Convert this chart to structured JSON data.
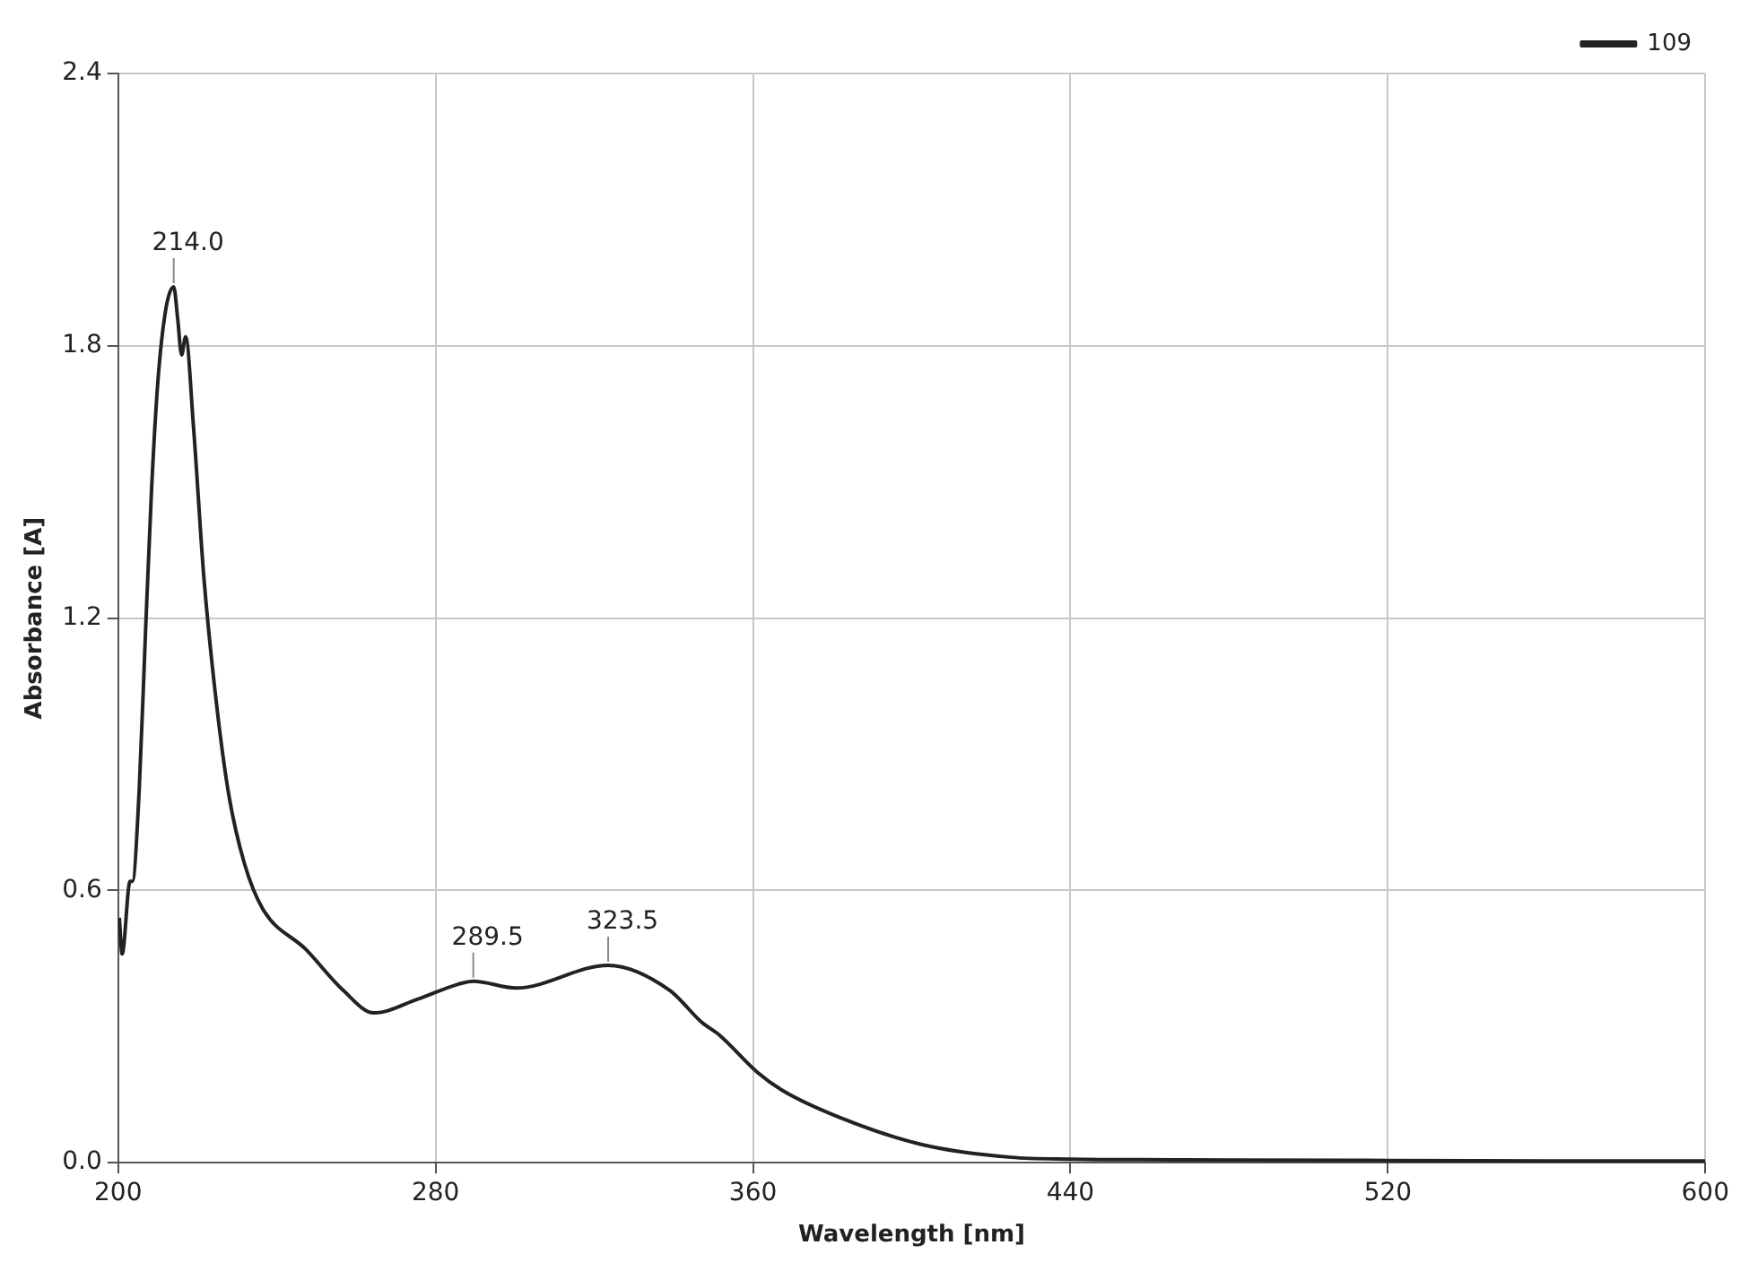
{
  "chart_data": {
    "type": "line",
    "xlabel": "Wavelength [nm]",
    "ylabel": "Absorbance [A]",
    "series": [
      {
        "name": "109",
        "color": "#222222",
        "x": [
          200.3,
          201,
          203,
          203.6,
          205.3,
          206.9,
          208.4,
          210,
          212,
          214,
          215,
          216,
          217,
          219,
          221.6,
          224.8,
          227.9,
          231.8,
          236.4,
          247.3,
          256.7,
          264.5,
          275.4,
          286.3,
          289.5,
          300.3,
          323.5,
          339,
          347,
          351.7,
          361,
          367.3,
          381.8,
          402.6,
          425,
          440,
          480,
          520,
          560,
          600
        ],
        "values": [
          0.54,
          0.46,
          0.62,
          0.62,
          0.82,
          1.17,
          1.48,
          1.72,
          1.88,
          1.93,
          1.86,
          1.78,
          1.82,
          1.62,
          1.29,
          1.01,
          0.81,
          0.66,
          0.56,
          0.47,
          0.38,
          0.33,
          0.36,
          0.395,
          0.4,
          0.385,
          0.435,
          0.38,
          0.31,
          0.28,
          0.2,
          0.16,
          0.1,
          0.04,
          0.012,
          0.008,
          0.006,
          0.005,
          0.004,
          0.004
        ]
      }
    ],
    "xlim": [
      200,
      600
    ],
    "xticks": [
      200,
      280,
      360,
      440,
      520,
      600
    ],
    "ylim": [
      0,
      2.4
    ],
    "yticks": [
      {
        "value": 0,
        "label": "0.0"
      },
      {
        "value": 0.6,
        "label": "0.6"
      },
      {
        "value": 1.2,
        "label": "1.2"
      },
      {
        "value": 1.8,
        "label": "1.8"
      },
      {
        "value": 2.4,
        "label": "2.4"
      }
    ],
    "grid": true,
    "legend": "top right",
    "marker": "none",
    "line_style": "solid",
    "annotations": [
      {
        "text": "214.0",
        "x": 214,
        "y": 1.93
      },
      {
        "text": "289.5",
        "x": 289.5,
        "y": 0.4
      },
      {
        "text": "323.5",
        "x": 323.5,
        "y": 0.435
      }
    ]
  }
}
